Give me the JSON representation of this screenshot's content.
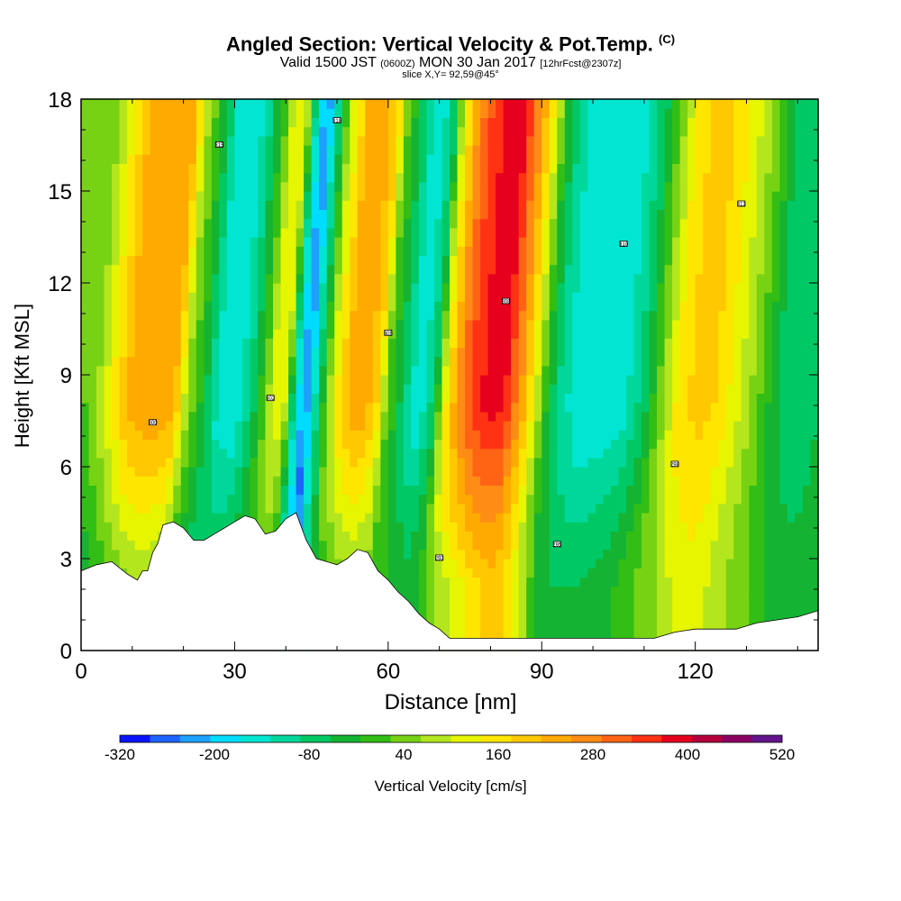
{
  "header": {
    "title": "Angled Section: Vertical Velocity & Pot.Temp.",
    "title_mark": "(C)",
    "subtitle_pre": "Valid 1500 JST",
    "subtitle_small": "(0600Z)",
    "subtitle_mid": "MON 30 Jan 2017",
    "subtitle_fcst": "[12hrFcst@2307z]",
    "slice": "slice X,Y= 92,59@45°"
  },
  "chart_data": {
    "type": "heatmap",
    "description_of_fields": "filled vertical-velocity cross-section with potential-temperature contour lines and terrain mask",
    "xlabel": "Distance [nm]",
    "ylabel": "Height [Kft MSL]",
    "xlim": [
      0,
      144
    ],
    "ylim": [
      0,
      18
    ],
    "x_ticks": [
      0,
      30,
      60,
      90,
      120
    ],
    "y_ticks": [
      0,
      3,
      6,
      9,
      12,
      15,
      18
    ],
    "colorbar": {
      "label": "Vertical Velocity [cm/s]",
      "tick_labels": [
        "-320",
        "-200",
        "-80",
        "40",
        "160",
        "280",
        "400",
        "520"
      ],
      "levels": [
        -320,
        -280,
        -240,
        -200,
        -160,
        -120,
        -80,
        -40,
        0,
        40,
        80,
        120,
        160,
        200,
        240,
        280,
        320,
        360,
        400,
        440,
        480,
        520
      ],
      "colors": [
        "#0a14ff",
        "#1e64ff",
        "#1ea0ff",
        "#00dcff",
        "#00e6d2",
        "#00d79b",
        "#00c864",
        "#14b432",
        "#32be14",
        "#78d214",
        "#b4e61e",
        "#e6f500",
        "#ffe600",
        "#ffc800",
        "#ffaa00",
        "#ff8c14",
        "#ff6414",
        "#ff3214",
        "#e6001e",
        "#b4003c",
        "#8c0064",
        "#64148c"
      ]
    },
    "vertical_velocity_profile": {
      "x": [
        0,
        5,
        8,
        12,
        16,
        19,
        22,
        25,
        28,
        31,
        34,
        36,
        38,
        40,
        42,
        44,
        47,
        50,
        53,
        56,
        58,
        61,
        64,
        67,
        69,
        72,
        75,
        78,
        81,
        84,
        87,
        89,
        92,
        96,
        100,
        104,
        108,
        112,
        115,
        119,
        122,
        126,
        130,
        134,
        138,
        141,
        144
      ],
      "w_upper": [
        40,
        180,
        260,
        280,
        260,
        80,
        -20,
        -140,
        -160,
        -80,
        40,
        160,
        120,
        -120,
        -240,
        -100,
        120,
        240,
        280,
        200,
        40,
        -60,
        -160,
        -60,
        140,
        300,
        380,
        420,
        400,
        280,
        120,
        0,
        -100,
        -160,
        -160,
        -140,
        -60,
        80,
        180,
        220,
        200,
        140,
        60,
        -40,
        -80,
        -60,
        -20
      ],
      "w_lower": [
        -40,
        20,
        60,
        80,
        60,
        -20,
        -60,
        -40,
        -20,
        0,
        40,
        40,
        0,
        -120,
        -280,
        -120,
        0,
        40,
        60,
        60,
        20,
        0,
        -20,
        20,
        80,
        120,
        160,
        200,
        220,
        160,
        60,
        0,
        -40,
        -40,
        -20,
        0,
        40,
        80,
        120,
        140,
        120,
        80,
        40,
        0,
        -20,
        -20,
        0
      ]
    },
    "terrain_height_kft": {
      "x": [
        0,
        3,
        6,
        9,
        10,
        11,
        12,
        13,
        14,
        15,
        16,
        18,
        20,
        22,
        24,
        26,
        28,
        30,
        32,
        34,
        36,
        38,
        40,
        42,
        44,
        46,
        48,
        50,
        52,
        54,
        56,
        58,
        60,
        62,
        64,
        66,
        68,
        70,
        72,
        76,
        80,
        84,
        88,
        92,
        96,
        100,
        104,
        108,
        112,
        116,
        120,
        124,
        128,
        132,
        136,
        140,
        144
      ],
      "h": [
        2.6,
        2.8,
        2.9,
        2.5,
        2.4,
        2.3,
        2.6,
        2.6,
        3.2,
        3.5,
        4.1,
        4.2,
        4.0,
        3.6,
        3.6,
        3.8,
        4.0,
        4.2,
        4.4,
        4.3,
        3.8,
        3.9,
        4.3,
        4.5,
        3.6,
        3.0,
        2.9,
        2.8,
        3.0,
        3.3,
        3.2,
        2.6,
        2.3,
        1.9,
        1.6,
        1.2,
        0.9,
        0.7,
        0.4,
        0.4,
        0.4,
        0.4,
        0.4,
        0.4,
        0.4,
        0.4,
        0.4,
        0.4,
        0.4,
        0.6,
        0.7,
        0.7,
        0.7,
        0.9,
        1.0,
        1.1,
        1.3
      ]
    },
    "pot_temp_contour_labels": [
      "293",
      "295",
      "298",
      "300",
      "302",
      "305",
      "308",
      "310",
      "313",
      "315",
      "318",
      "320"
    ]
  }
}
